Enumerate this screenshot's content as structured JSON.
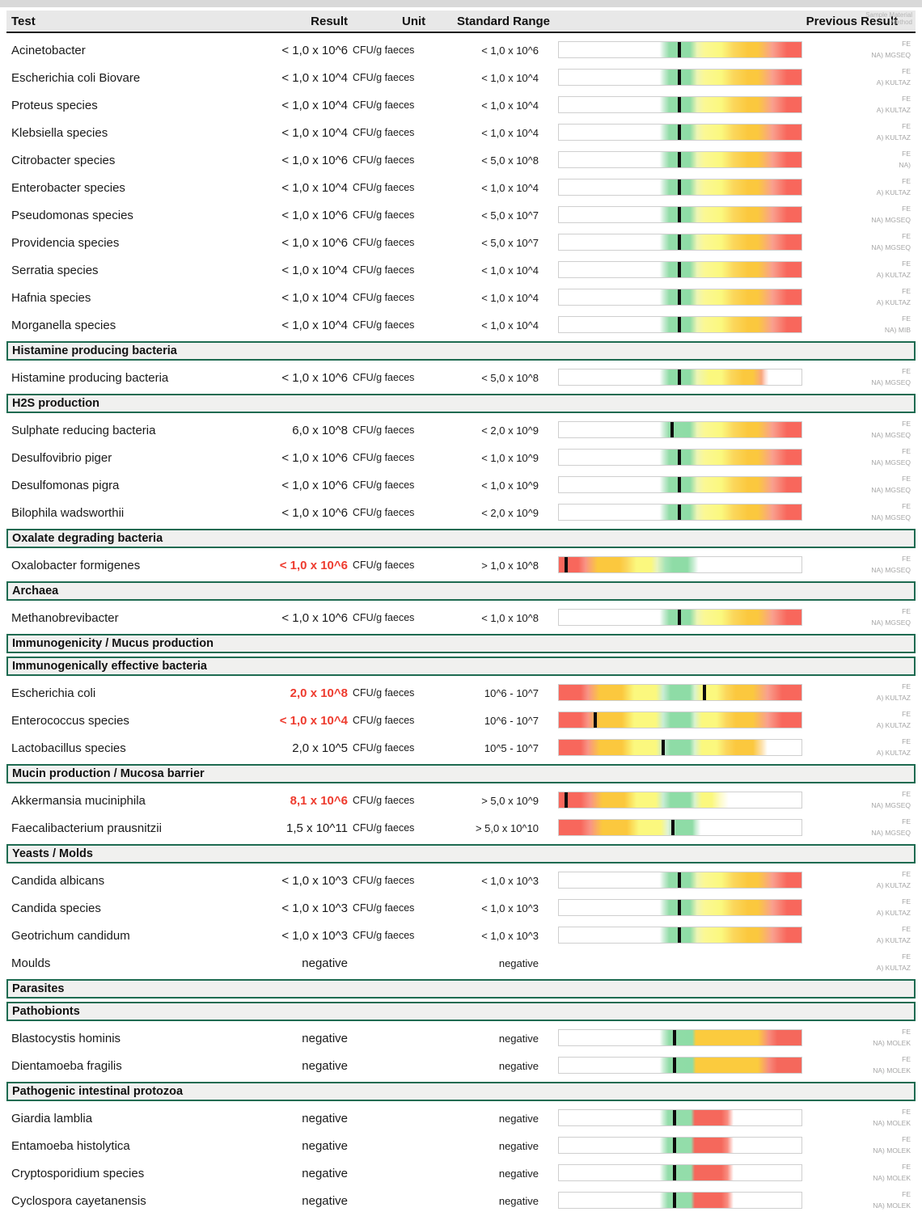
{
  "header": {
    "col_test": "Test",
    "col_result": "Result",
    "col_unit": "Unit",
    "col_range": "Standard Range",
    "col_previous": "Previous Result",
    "overlay_line1": "Sample Material",
    "overlay_line2": "Method"
  },
  "colors": {
    "section_border": "#1e6b51",
    "header_bg": "#e8e8e8",
    "abnormal_result_red": "#ee3b2e",
    "marker_black": "#0d0d0d"
  },
  "sections": [
    {
      "title": null,
      "rows": [
        {
          "test": "Acinetobacter",
          "result": "< 1,0 x 10^6",
          "red": false,
          "unit": "CFU/g faeces",
          "range": "< 1,0 x 10^6",
          "bar": "standard",
          "marker": 49.5,
          "sample": "FE",
          "method": "NA) MGSEQ"
        },
        {
          "test": "Escherichia coli Biovare",
          "result": "< 1,0 x 10^4",
          "red": false,
          "unit": "CFU/g faeces",
          "range": "< 1,0 x 10^4",
          "bar": "standard",
          "marker": 49.5,
          "sample": "FE",
          "method": "A) KULTAZ"
        },
        {
          "test": "Proteus species",
          "result": "< 1,0 x 10^4",
          "red": false,
          "unit": "CFU/g faeces",
          "range": "< 1,0 x 10^4",
          "bar": "standard",
          "marker": 49.5,
          "sample": "FE",
          "method": "A) KULTAZ"
        },
        {
          "test": "Klebsiella species",
          "result": "< 1,0 x 10^4",
          "red": false,
          "unit": "CFU/g faeces",
          "range": "< 1,0 x 10^4",
          "bar": "standard",
          "marker": 49.5,
          "sample": "FE",
          "method": "A) KULTAZ"
        },
        {
          "test": "Citrobacter species",
          "result": "< 1,0 x 10^6",
          "red": false,
          "unit": "CFU/g faeces",
          "range": "< 5,0 x 10^8",
          "bar": "standard",
          "marker": 49.5,
          "sample": "FE",
          "method": "NA)"
        },
        {
          "test": "Enterobacter species",
          "result": "< 1,0 x 10^4",
          "red": false,
          "unit": "CFU/g faeces",
          "range": "< 1,0 x 10^4",
          "bar": "standard",
          "marker": 49.5,
          "sample": "FE",
          "method": "A) KULTAZ"
        },
        {
          "test": "Pseudomonas species",
          "result": "< 1,0 x 10^6",
          "red": false,
          "unit": "CFU/g faeces",
          "range": "< 5,0 x 10^7",
          "bar": "standard",
          "marker": 49.5,
          "sample": "FE",
          "method": "NA) MGSEQ"
        },
        {
          "test": "Providencia species",
          "result": "< 1,0 x 10^6",
          "red": false,
          "unit": "CFU/g faeces",
          "range": "< 5,0 x 10^7",
          "bar": "standard",
          "marker": 49.5,
          "sample": "FE",
          "method": "NA) MGSEQ"
        },
        {
          "test": "Serratia species",
          "result": "< 1,0 x 10^4",
          "red": false,
          "unit": "CFU/g faeces",
          "range": "< 1,0 x 10^4",
          "bar": "standard",
          "marker": 49.5,
          "sample": "FE",
          "method": "A) KULTAZ"
        },
        {
          "test": "Hafnia species",
          "result": "< 1,0 x 10^4",
          "red": false,
          "unit": "CFU/g faeces",
          "range": "< 1,0 x 10^4",
          "bar": "standard",
          "marker": 49.5,
          "sample": "FE",
          "method": "A) KULTAZ"
        },
        {
          "test": "Morganella species",
          "result": "< 1,0 x 10^4",
          "red": false,
          "unit": "CFU/g faeces",
          "range": "< 1,0 x 10^4",
          "bar": "standard",
          "marker": 49.5,
          "sample": "FE",
          "method": "NA) MIB"
        }
      ]
    },
    {
      "title": "Histamine producing bacteria",
      "rows": [
        {
          "test": "Histamine producing bacteria",
          "result": "< 1,0 x 10^6",
          "red": false,
          "unit": "CFU/g faeces",
          "range": "< 5,0 x 10^8",
          "bar": "histamine",
          "marker": 49.5,
          "sample": "FE",
          "method": "NA) MGSEQ"
        }
      ]
    },
    {
      "title": "H2S production",
      "rows": [
        {
          "test": "Sulphate reducing bacteria",
          "result": "6,0 x 10^8",
          "red": false,
          "unit": "CFU/g faeces",
          "range": "< 2,0 x 10^9",
          "bar": "standard",
          "marker": 46.5,
          "sample": "FE",
          "method": "NA) MGSEQ"
        },
        {
          "test": "Desulfovibrio piger",
          "result": "< 1,0 x 10^6",
          "red": false,
          "unit": "CFU/g faeces",
          "range": "< 1,0 x 10^9",
          "bar": "standard",
          "marker": 49.5,
          "sample": "FE",
          "method": "NA) MGSEQ"
        },
        {
          "test": "Desulfomonas pigra",
          "result": "< 1,0 x 10^6",
          "red": false,
          "unit": "CFU/g faeces",
          "range": "< 1,0 x 10^9",
          "bar": "standard",
          "marker": 49.5,
          "sample": "FE",
          "method": "NA) MGSEQ"
        },
        {
          "test": "Bilophila wadsworthii",
          "result": "< 1,0 x 10^6",
          "red": false,
          "unit": "CFU/g faeces",
          "range": "< 2,0 x 10^9",
          "bar": "standard",
          "marker": 49.5,
          "sample": "FE",
          "method": "NA) MGSEQ"
        }
      ]
    },
    {
      "title": "Oxalate degrading bacteria",
      "rows": [
        {
          "test": "Oxalobacter formigenes",
          "result": "< 1,0 x 10^6",
          "red": true,
          "unit": "CFU/g faeces",
          "range": "> 1,0 x 10^8",
          "bar": "oxalate",
          "marker": 3,
          "sample": "FE",
          "method": "NA) MGSEQ"
        }
      ]
    },
    {
      "title": "Archaea",
      "rows": [
        {
          "test": "Methanobrevibacter",
          "result": "< 1,0 x 10^6",
          "red": false,
          "unit": "CFU/g faeces",
          "range": "< 1,0 x 10^8",
          "bar": "standard",
          "marker": 49.5,
          "sample": "FE",
          "method": "NA) MGSEQ"
        }
      ]
    },
    {
      "title": "Immunogenicity / Mucus production",
      "rows": []
    },
    {
      "title": "Immunogenically effective bacteria",
      "rows": [
        {
          "test": "Escherichia coli",
          "result": "2,0 x 10^8",
          "red": true,
          "unit": "CFU/g faeces",
          "range": "10^6 - 10^7",
          "bar": "immuno",
          "marker": 60,
          "sample": "FE",
          "method": "A) KULTAZ"
        },
        {
          "test": "Enterococcus species",
          "result": "< 1,0 x 10^4",
          "red": true,
          "unit": "CFU/g faeces",
          "range": "10^6 - 10^7",
          "bar": "immuno",
          "marker": 15,
          "sample": "FE",
          "method": "A) KULTAZ"
        },
        {
          "test": "Lactobacillus species",
          "result": "2,0 x 10^5",
          "red": false,
          "unit": "CFU/g faeces",
          "range": "10^5 - 10^7",
          "bar": "lacto",
          "marker": 43,
          "sample": "FE",
          "method": "A) KULTAZ"
        }
      ]
    },
    {
      "title": "Mucin production / Mucosa barrier",
      "rows": [
        {
          "test": "Akkermansia muciniphila",
          "result": "8,1 x 10^6",
          "red": true,
          "unit": "CFU/g faeces",
          "range": "> 5,0 x 10^9",
          "bar": "akkermansia",
          "marker": 3,
          "sample": "FE",
          "method": "NA) MGSEQ"
        },
        {
          "test": "Faecalibacterium prausnitzii",
          "result": "1,5 x 10^11",
          "red": false,
          "unit": "CFU/g faeces",
          "range": "> 5,0 x 10^10",
          "bar": "faecal",
          "marker": 47,
          "sample": "FE",
          "method": "NA) MGSEQ"
        }
      ]
    },
    {
      "title": "Yeasts / Molds",
      "rows": [
        {
          "test": "Candida albicans",
          "result": "< 1,0 x 10^3",
          "red": false,
          "unit": "CFU/g faeces",
          "range": "< 1,0 x 10^3",
          "bar": "standard",
          "marker": 49.5,
          "sample": "FE",
          "method": "A) KULTAZ"
        },
        {
          "test": "Candida species",
          "result": "< 1,0 x 10^3",
          "red": false,
          "unit": "CFU/g faeces",
          "range": "< 1,0 x 10^3",
          "bar": "standard",
          "marker": 49.5,
          "sample": "FE",
          "method": "A) KULTAZ"
        },
        {
          "test": "Geotrichum candidum",
          "result": "< 1,0 x 10^3",
          "red": false,
          "unit": "CFU/g faeces",
          "range": "< 1,0 x 10^3",
          "bar": "standard",
          "marker": 49.5,
          "sample": "FE",
          "method": "A) KULTAZ"
        },
        {
          "test": "Moulds",
          "result": "negative",
          "red": false,
          "unit": "",
          "range": "negative",
          "bar": null,
          "marker": null,
          "sample": "FE",
          "method": "A) KULTAZ"
        }
      ]
    },
    {
      "title": "Parasites",
      "rows": []
    },
    {
      "title": "Pathobionts",
      "rows": [
        {
          "test": "Blastocystis hominis",
          "result": "negative",
          "red": false,
          "unit": "",
          "range": "negative",
          "bar": "pathobiont",
          "marker": 47.5,
          "sample": "FE",
          "method": "NA) MOLEK"
        },
        {
          "test": "Dientamoeba fragilis",
          "result": "negative",
          "red": false,
          "unit": "",
          "range": "negative",
          "bar": "pathobiont",
          "marker": 47.5,
          "sample": "FE",
          "method": "NA) MOLEK"
        }
      ]
    },
    {
      "title": "Pathogenic intestinal protozoa",
      "rows": [
        {
          "test": "Giardia lamblia",
          "result": "negative",
          "red": false,
          "unit": "",
          "range": "negative",
          "bar": "protozoa",
          "marker": 47.5,
          "sample": "FE",
          "method": "NA) MOLEK"
        },
        {
          "test": "Entamoeba histolytica",
          "result": "negative",
          "red": false,
          "unit": "",
          "range": "negative",
          "bar": "protozoa",
          "marker": 47.5,
          "sample": "FE",
          "method": "NA) MOLEK"
        },
        {
          "test": "Cryptosporidium species",
          "result": "negative",
          "red": false,
          "unit": "",
          "range": "negative",
          "bar": "protozoa",
          "marker": 47.5,
          "sample": "FE",
          "method": "NA) MOLEK"
        },
        {
          "test": "Cyclospora cayetanensis",
          "result": "negative",
          "red": false,
          "unit": "",
          "range": "negative",
          "bar": "protozoa",
          "marker": 47.5,
          "sample": "FE",
          "method": "NA) MOLEK"
        }
      ]
    }
  ]
}
